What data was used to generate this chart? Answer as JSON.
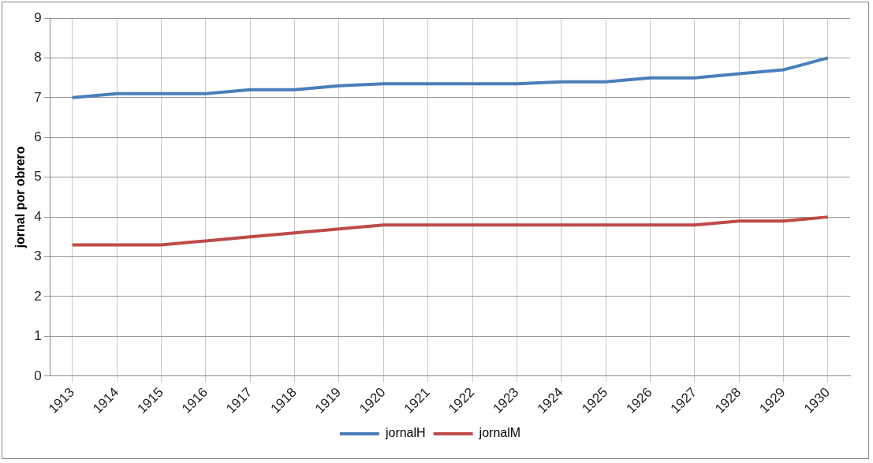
{
  "chart_data": {
    "type": "line",
    "ylabel": "jornal por obrero",
    "categories": [
      "1913",
      "1914",
      "1915",
      "1916",
      "1917",
      "1918",
      "1919",
      "1920",
      "1921",
      "1922",
      "1923",
      "1924",
      "1925",
      "1926",
      "1927",
      "1928",
      "1929",
      "1930"
    ],
    "series": [
      {
        "name": "jornalH",
        "color": "#4a7ebb",
        "values": [
          7.0,
          7.1,
          7.1,
          7.1,
          7.2,
          7.2,
          7.3,
          7.35,
          7.35,
          7.35,
          7.35,
          7.4,
          7.4,
          7.5,
          7.5,
          7.6,
          7.7,
          8.0
        ]
      },
      {
        "name": "jornalM",
        "color": "#be4b48",
        "values": [
          3.3,
          3.3,
          3.3,
          3.4,
          3.5,
          3.6,
          3.7,
          3.8,
          3.8,
          3.8,
          3.8,
          3.8,
          3.8,
          3.8,
          3.8,
          3.9,
          3.9,
          4.0
        ]
      }
    ],
    "ylim": [
      0,
      9
    ],
    "yticks": [
      0,
      1,
      2,
      3,
      4,
      5,
      6,
      7,
      8,
      9
    ],
    "grid": true,
    "legend": "bottom",
    "marker": "none",
    "line_style": "solid"
  }
}
